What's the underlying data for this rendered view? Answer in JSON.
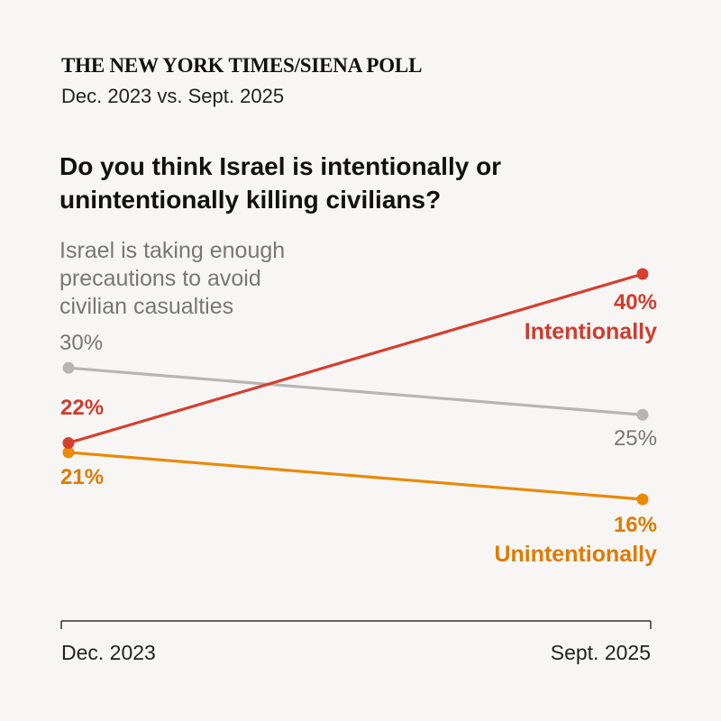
{
  "header": {
    "masthead": "THE NEW YORK TIMES/SIENA POLL",
    "subtitle": "Dec. 2023 vs. Sept. 2025"
  },
  "question": "Do you think Israel is intentionally or unintentionally killing civilians?",
  "colors": {
    "gray": "#b5b5b5",
    "gray_text": "#777777",
    "red": "#d63f2f",
    "red_text": "#d23a2c",
    "orange": "#e88a06",
    "orange_text": "#e07a00",
    "axis": "#333333"
  },
  "chart_data": {
    "type": "line",
    "x": [
      "Dec. 2023",
      "Sept. 2025"
    ],
    "ylim": [
      12,
      44
    ],
    "grid": false,
    "series": [
      {
        "name": "Israel is taking enough precautions to avoid civilian casualties",
        "name_lines": [
          "Israel is taking enough",
          "precautions to avoid",
          "civilian casualties"
        ],
        "values": [
          30,
          25
        ],
        "value_labels": [
          "30%",
          "25%"
        ],
        "color_key": "gray"
      },
      {
        "name": "Intentionally",
        "values": [
          22,
          40
        ],
        "value_labels": [
          "22%",
          "40%"
        ],
        "color_key": "red"
      },
      {
        "name": "Unintentionally",
        "values": [
          21,
          16
        ],
        "value_labels": [
          "21%",
          "16%"
        ],
        "color_key": "orange"
      }
    ]
  }
}
